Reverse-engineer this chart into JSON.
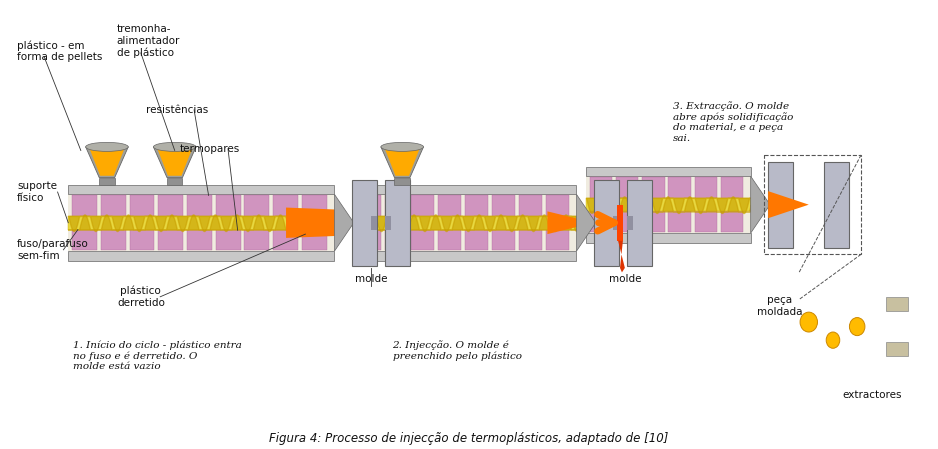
{
  "title": "Figura 4: Processo de injecção de termoplásticos, adaptado de [10]",
  "background_color": "#ffffff",
  "figsize": [
    9.38,
    4.49
  ],
  "dpi": 100,
  "labels": {
    "top_left_1": "plástico - em\nforma de pellets",
    "top_left_2": "tremonha-\nalimentador\nde plástico",
    "mid_left_1": "resistências",
    "mid_left_2": "termopares",
    "left_1": "suporte\nfísico",
    "left_2": "fuso/parafuso\nsem-fim",
    "bottom_left_1": "plástico\nderretido",
    "bottom_mid": "molde",
    "step1": "1. Início do ciclo - plástico entra\nno fuso e é derretido. O\nmolde está vazio",
    "step2": "2. Injecção. O molde é\npreenchido pelo plástico",
    "step3": "3. Extracção. O molde\nabre após solidificação\ndo material, e a peça\nsai.",
    "right_1": "peça\nmoldada",
    "right_2": "extractores"
  },
  "annotation_color": "#000000"
}
